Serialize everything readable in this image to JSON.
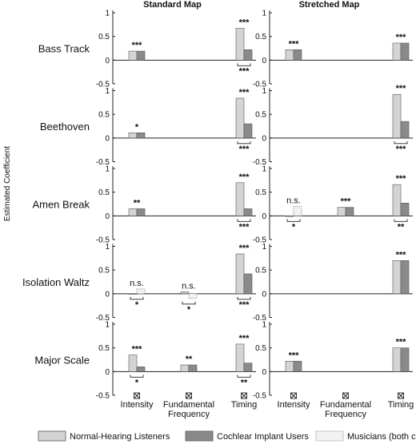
{
  "chart_data": {
    "type": "bar",
    "columns": [
      "Standard Map",
      "Stretched Map"
    ],
    "rows": [
      "Bass Track",
      "Beethoven",
      "Amen Break",
      "Isolation Waltz",
      "Major Scale"
    ],
    "categories": [
      "Intensity",
      "Fundamental Frequency",
      "Timing"
    ],
    "category_lines": [
      [
        "Intensity"
      ],
      [
        "Fundamental",
        "Frequency"
      ],
      [
        "Timing"
      ]
    ],
    "ylabel": "Estimated Coefficient",
    "ylim": [
      -0.5,
      1.0
    ],
    "yticks": [
      -0.5,
      0,
      0.5,
      1
    ],
    "grid": false,
    "legend": {
      "position": "bottom",
      "entries": [
        {
          "name": "Normal-Hearing Listeners",
          "color": "#d4d4d4",
          "style": "solid"
        },
        {
          "name": "Cochlear Implant Users",
          "color": "#8a8a8a",
          "style": "solid"
        },
        {
          "name": "Musicians (both cohorts)",
          "color": "#f2f2f2",
          "style": "dotted"
        }
      ]
    },
    "panels": [
      {
        "map": "Standard Map",
        "stimulus": "Bass Track",
        "bars": [
          {
            "cat": 0,
            "group": "nh",
            "value": 0.19
          },
          {
            "cat": 0,
            "group": "ci",
            "value": 0.19
          },
          {
            "cat": 2,
            "group": "nh",
            "value": 0.67
          },
          {
            "cat": 2,
            "group": "ci",
            "value": 0.22
          }
        ],
        "stars": [
          {
            "cat": 0,
            "text": "***"
          },
          {
            "cat": 2,
            "text": "***"
          }
        ],
        "bracket_labels": [
          {
            "cat": 2,
            "text": "***"
          }
        ]
      },
      {
        "map": "Stretched Map",
        "stimulus": "Bass Track",
        "bars": [
          {
            "cat": 0,
            "group": "nh",
            "value": 0.22
          },
          {
            "cat": 0,
            "group": "ci",
            "value": 0.22
          },
          {
            "cat": 2,
            "group": "nh",
            "value": 0.36
          },
          {
            "cat": 2,
            "group": "ci",
            "value": 0.36
          }
        ],
        "stars": [
          {
            "cat": 0,
            "text": "***"
          },
          {
            "cat": 2,
            "text": "***"
          }
        ],
        "bracket_labels": []
      },
      {
        "map": "Standard Map",
        "stimulus": "Beethoven",
        "bars": [
          {
            "cat": 0,
            "group": "nh",
            "value": 0.11
          },
          {
            "cat": 0,
            "group": "ci",
            "value": 0.11
          },
          {
            "cat": 2,
            "group": "nh",
            "value": 0.84
          },
          {
            "cat": 2,
            "group": "ci",
            "value": 0.3
          }
        ],
        "stars": [
          {
            "cat": 0,
            "text": "*"
          },
          {
            "cat": 2,
            "text": "***"
          }
        ],
        "bracket_labels": [
          {
            "cat": 2,
            "text": "***"
          }
        ]
      },
      {
        "map": "Stretched Map",
        "stimulus": "Beethoven",
        "bars": [
          {
            "cat": 2,
            "group": "nh",
            "value": 0.92
          },
          {
            "cat": 2,
            "group": "ci",
            "value": 0.35
          }
        ],
        "stars": [
          {
            "cat": 2,
            "text": "***"
          }
        ],
        "bracket_labels": [
          {
            "cat": 2,
            "text": "***"
          }
        ]
      },
      {
        "map": "Standard Map",
        "stimulus": "Amen Break",
        "bars": [
          {
            "cat": 0,
            "group": "nh",
            "value": 0.15
          },
          {
            "cat": 0,
            "group": "ci",
            "value": 0.15
          },
          {
            "cat": 2,
            "group": "nh",
            "value": 0.7
          },
          {
            "cat": 2,
            "group": "ci",
            "value": 0.15
          }
        ],
        "stars": [
          {
            "cat": 0,
            "text": "**"
          },
          {
            "cat": 2,
            "text": "***"
          }
        ],
        "bracket_labels": [
          {
            "cat": 2,
            "text": "***"
          }
        ]
      },
      {
        "map": "Stretched Map",
        "stimulus": "Amen Break",
        "bars": [
          {
            "cat": 0,
            "group": "nh",
            "value": 0.0
          },
          {
            "cat": 0,
            "group": "mu",
            "value": 0.2
          },
          {
            "cat": 1,
            "group": "nh",
            "value": 0.18
          },
          {
            "cat": 1,
            "group": "ci",
            "value": 0.18
          },
          {
            "cat": 2,
            "group": "nh",
            "value": 0.66
          },
          {
            "cat": 2,
            "group": "ci",
            "value": 0.27
          }
        ],
        "stars": [
          {
            "cat": 0,
            "text": "n.s."
          },
          {
            "cat": 1,
            "text": "***"
          },
          {
            "cat": 2,
            "text": "***"
          }
        ],
        "bracket_labels": [
          {
            "cat": 0,
            "text": "*"
          },
          {
            "cat": 2,
            "text": "**"
          }
        ]
      },
      {
        "map": "Standard Map",
        "stimulus": "Isolation Waltz",
        "bars": [
          {
            "cat": 0,
            "group": "nh",
            "value": 0.0
          },
          {
            "cat": 0,
            "group": "mu",
            "value": 0.1
          },
          {
            "cat": 1,
            "group": "nh",
            "value": 0.04
          },
          {
            "cat": 1,
            "group": "mu",
            "value": -0.1
          },
          {
            "cat": 2,
            "group": "nh",
            "value": 0.84
          },
          {
            "cat": 2,
            "group": "ci",
            "value": 0.42
          }
        ],
        "stars": [
          {
            "cat": 0,
            "text": "n.s."
          },
          {
            "cat": 1,
            "text": "n.s."
          },
          {
            "cat": 2,
            "text": "***"
          }
        ],
        "bracket_labels": [
          {
            "cat": 0,
            "text": "*"
          },
          {
            "cat": 1,
            "text": "*"
          },
          {
            "cat": 2,
            "text": "***"
          }
        ]
      },
      {
        "map": "Stretched Map",
        "stimulus": "Isolation Waltz",
        "bars": [
          {
            "cat": 2,
            "group": "nh",
            "value": 0.7
          },
          {
            "cat": 2,
            "group": "ci",
            "value": 0.7
          }
        ],
        "stars": [
          {
            "cat": 2,
            "text": "***"
          }
        ],
        "bracket_labels": []
      },
      {
        "map": "Standard Map",
        "stimulus": "Major Scale",
        "bars": [
          {
            "cat": 0,
            "group": "nh",
            "value": 0.35
          },
          {
            "cat": 0,
            "group": "ci",
            "value": 0.1
          },
          {
            "cat": 1,
            "group": "nh",
            "value": 0.14
          },
          {
            "cat": 1,
            "group": "ci",
            "value": 0.14
          },
          {
            "cat": 2,
            "group": "nh",
            "value": 0.58
          },
          {
            "cat": 2,
            "group": "ci",
            "value": 0.18
          }
        ],
        "stars": [
          {
            "cat": 0,
            "text": "***"
          },
          {
            "cat": 1,
            "text": "**"
          },
          {
            "cat": 2,
            "text": "***"
          }
        ],
        "bracket_labels": [
          {
            "cat": 0,
            "text": "*"
          },
          {
            "cat": 2,
            "text": "**"
          }
        ]
      },
      {
        "map": "Stretched Map",
        "stimulus": "Major Scale",
        "bars": [
          {
            "cat": 0,
            "group": "nh",
            "value": 0.22
          },
          {
            "cat": 0,
            "group": "ci",
            "value": 0.22
          },
          {
            "cat": 2,
            "group": "nh",
            "value": 0.5
          },
          {
            "cat": 2,
            "group": "ci",
            "value": 0.5
          }
        ],
        "stars": [
          {
            "cat": 0,
            "text": "***"
          },
          {
            "cat": 2,
            "text": "***"
          }
        ],
        "bracket_labels": []
      }
    ]
  }
}
